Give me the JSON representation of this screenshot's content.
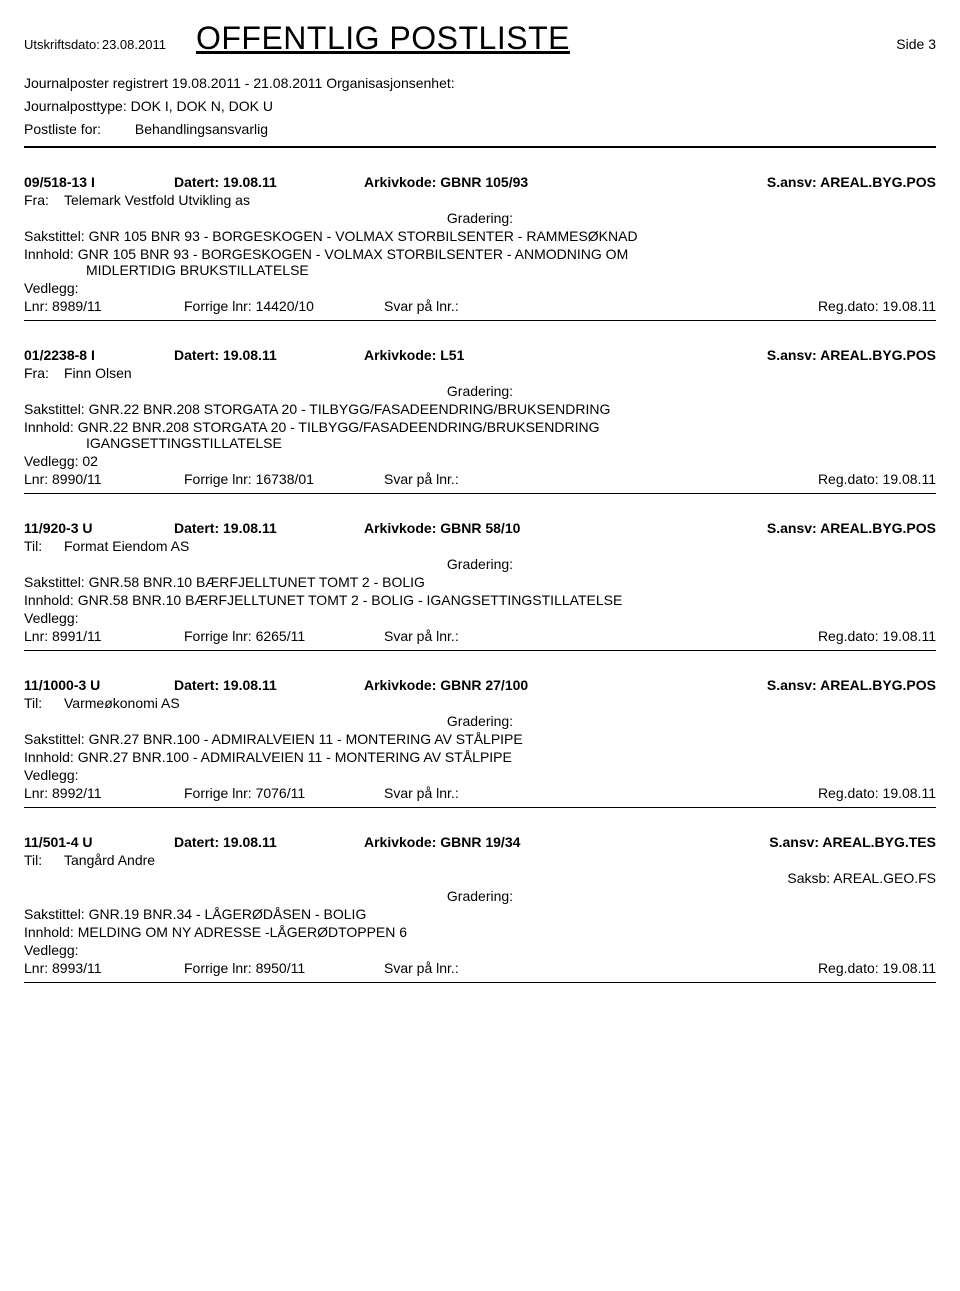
{
  "header": {
    "print_date_label": "Utskriftsdato:",
    "print_date_value": "23.08.2011",
    "title": "OFFENTLIG POSTLISTE",
    "side": "Side 3"
  },
  "subheader": {
    "line1_a": "Journalposter registrert",
    "line1_b": "19.08.2011 - 21.08.2011",
    "line1_c": "Organisasjonsenhet:",
    "line2_a": "Journalposttype:",
    "line2_b": "DOK I, DOK N, DOK U",
    "line3_a": "Postliste for:",
    "line3_b": "Behandlingsansvarlig"
  },
  "labels": {
    "datert": "Datert:",
    "arkivkode": "Arkivkode:",
    "sansv": "S.ansv:",
    "fra": "Fra:",
    "til": "Til:",
    "gradering": "Gradering:",
    "sakstittel": "Sakstittel:",
    "innhold": "Innhold:",
    "vedlegg": "Vedlegg:",
    "lnr": "Lnr:",
    "forrige": "Forrige lnr:",
    "svar": "Svar på lnr.:",
    "regdato": "Reg.dato:",
    "saksb": "Saksb:"
  },
  "entries": [
    {
      "ref": "09/518-13 I",
      "datert": "19.08.11",
      "arkivkode": "GBNR 105/93",
      "sansv": "AREAL.BYG.POS",
      "party_label": "Fra:",
      "party": "Telemark Vestfold Utvikling as",
      "sakstittel": "GNR 105 BNR 93 - BORGESKOGEN - VOLMAX STORBILSENTER -  RAMMESØKNAD",
      "innhold": "GNR 105 BNR 93 - BORGESKOGEN - VOLMAX STORBILSENTER -  ANMODNING OM",
      "innhold_cont": "MIDLERTIDIG BRUKSTILLATELSE",
      "vedlegg": "",
      "lnr": "8989/11",
      "forrige": "14420/10",
      "regdato": "19.08.11",
      "saksb": ""
    },
    {
      "ref": "01/2238-8 I",
      "datert": "19.08.11",
      "arkivkode": "L51",
      "sansv": "AREAL.BYG.POS",
      "party_label": "Fra:",
      "party": "Finn Olsen",
      "sakstittel": "GNR.22 BNR.208 STORGATA 20 - TILBYGG/FASADEENDRING/BRUKSENDRING",
      "innhold": "GNR.22 BNR.208 STORGATA 20 - TILBYGG/FASADEENDRING/BRUKSENDRING",
      "innhold_cont": "IGANGSETTINGSTILLATELSE",
      "vedlegg": "02",
      "lnr": "8990/11",
      "forrige": "16738/01",
      "regdato": "19.08.11",
      "saksb": ""
    },
    {
      "ref": "11/920-3 U",
      "datert": "19.08.11",
      "arkivkode": "GBNR 58/10",
      "sansv": "AREAL.BYG.POS",
      "party_label": "Til:",
      "party": "Format Eiendom AS",
      "sakstittel": "GNR.58 BNR.10 BÆRFJELLTUNET TOMT 2 - BOLIG",
      "innhold": "GNR.58 BNR.10 BÆRFJELLTUNET TOMT 2 - BOLIG -  IGANGSETTINGSTILLATELSE",
      "innhold_cont": "",
      "vedlegg": "",
      "lnr": "8991/11",
      "forrige": "6265/11",
      "regdato": "19.08.11",
      "saksb": ""
    },
    {
      "ref": "11/1000-3 U",
      "datert": "19.08.11",
      "arkivkode": "GBNR 27/100",
      "sansv": "AREAL.BYG.POS",
      "party_label": "Til:",
      "party": "Varmeøkonomi AS",
      "sakstittel": "GNR.27 BNR.100 - ADMIRALVEIEN 11 - MONTERING AV STÅLPIPE",
      "innhold": "GNR.27 BNR.100 - ADMIRALVEIEN 11 - MONTERING AV STÅLPIPE",
      "innhold_cont": "",
      "vedlegg": "",
      "lnr": "8992/11",
      "forrige": "7076/11",
      "regdato": "19.08.11",
      "saksb": ""
    },
    {
      "ref": "11/501-4 U",
      "datert": "19.08.11",
      "arkivkode": "GBNR 19/34",
      "sansv": "AREAL.BYG.TES",
      "party_label": "Til:",
      "party": "Tangård Andre",
      "sakstittel": "GNR.19 BNR.34 - LÅGERØDÅSEN - BOLIG",
      "innhold": "MELDING OM NY ADRESSE -LÅGERØDTOPPEN 6",
      "innhold_cont": "",
      "vedlegg": "",
      "lnr": "8993/11",
      "forrige": "8950/11",
      "regdato": "19.08.11",
      "saksb": "AREAL.GEO.FS"
    }
  ]
}
